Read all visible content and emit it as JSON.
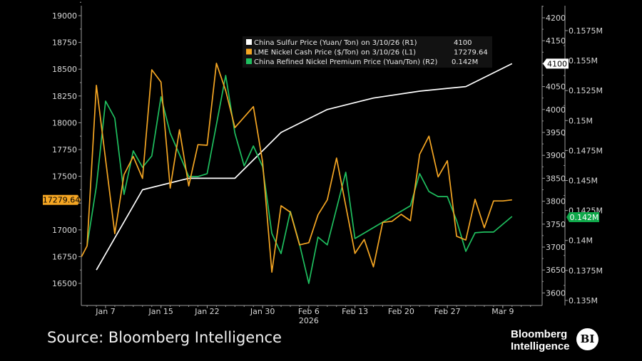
{
  "chart_data": {
    "type": "line",
    "x_unit": "trading days from Jan 7 2026",
    "x_ticks": [
      {
        "x": 0,
        "label": "Jan 7"
      },
      {
        "x": 6,
        "label": "Jan 15"
      },
      {
        "x": 11,
        "label": "Jan 22"
      },
      {
        "x": 17,
        "label": "Jan 30"
      },
      {
        "x": 22,
        "label": "Feb 6"
      },
      {
        "x": 27,
        "label": "Feb 13"
      },
      {
        "x": 32,
        "label": "Feb 20"
      },
      {
        "x": 37,
        "label": "Feb 27"
      },
      {
        "x": 43,
        "label": "Mar 9"
      }
    ],
    "x_year_label": "2026",
    "axes": {
      "left": {
        "id": "L1",
        "range": [
          16400,
          19100
        ],
        "ticks": [
          16500,
          16750,
          17000,
          17250,
          17500,
          17750,
          18000,
          18250,
          18500,
          18750,
          19000
        ],
        "tick_labels": [
          "16500",
          "16750",
          "17000",
          "",
          "17500",
          "17750",
          "18000",
          "18250",
          "18500",
          "18750",
          "19000"
        ]
      },
      "right1": {
        "id": "R1",
        "range": [
          3570,
          4230
        ],
        "ticks": [
          3600,
          3650,
          3700,
          3750,
          3800,
          3850,
          3900,
          3950,
          4000,
          4050,
          4100,
          4150,
          4200
        ],
        "tick_labels": [
          "3600",
          "3650",
          "3700",
          "3750",
          "3800",
          "3850",
          "3900",
          "3950",
          "4000",
          "4050",
          "",
          "4150",
          "4200"
        ]
      },
      "right2": {
        "id": "R2",
        "range": [
          134500,
          158500
        ],
        "ticks": [
          135000,
          137500,
          140000,
          142500,
          145000,
          147500,
          150000,
          152500,
          155000,
          157500
        ],
        "tick_labels": [
          "0.135M",
          "0.1375M",
          "0.14M",
          "0.1425M",
          "0.145M",
          "0.1475M",
          "0.15M",
          "0.1525M",
          "0.155M",
          "0.1575M"
        ]
      }
    },
    "series": [
      {
        "name": "China Sulfur Price (Yuan/ Ton) on 3/10/26 (R1)",
        "axis": "R1",
        "color": "#ffffff",
        "last_value": "4100",
        "points": [
          [
            -1,
            3650
          ],
          [
            4,
            3825
          ],
          [
            9,
            3850
          ],
          [
            14,
            3850
          ],
          [
            19,
            3950
          ],
          [
            24,
            4000
          ],
          [
            29,
            4025
          ],
          [
            34,
            4040
          ],
          [
            39,
            4050
          ],
          [
            44,
            4100
          ]
        ]
      },
      {
        "name": "LME Nickel Cash Price ($/Ton) on 3/10/26 (L1)",
        "axis": "L1",
        "color": "#f5a623",
        "last_value": "17279.64",
        "points": [
          [
            -2.6,
            16750
          ],
          [
            -2,
            16850
          ],
          [
            -1,
            18350
          ],
          [
            1,
            16965
          ],
          [
            2,
            17515
          ],
          [
            3,
            17685
          ],
          [
            4,
            17480
          ],
          [
            5,
            18495
          ],
          [
            6,
            18380
          ],
          [
            7,
            17390
          ],
          [
            8,
            17935
          ],
          [
            9,
            17410
          ],
          [
            10,
            17795
          ],
          [
            11,
            17790
          ],
          [
            12,
            18555
          ],
          [
            13,
            18300
          ],
          [
            14,
            17955
          ],
          [
            16,
            18150
          ],
          [
            17,
            17635
          ],
          [
            18,
            16605
          ],
          [
            19,
            17225
          ],
          [
            20,
            17165
          ],
          [
            21,
            16860
          ],
          [
            22,
            16880
          ],
          [
            23,
            17140
          ],
          [
            24,
            17280
          ],
          [
            25,
            17670
          ],
          [
            27,
            16780
          ],
          [
            28,
            16910
          ],
          [
            29,
            16655
          ],
          [
            30,
            17070
          ],
          [
            31,
            17080
          ],
          [
            32,
            17145
          ],
          [
            33,
            17085
          ],
          [
            34,
            17705
          ],
          [
            35,
            17875
          ],
          [
            36,
            17495
          ],
          [
            37,
            17645
          ],
          [
            38,
            16940
          ],
          [
            39,
            16905
          ],
          [
            40,
            17285
          ],
          [
            41,
            17020
          ],
          [
            42,
            17270
          ],
          [
            43,
            17270
          ],
          [
            44,
            17279.64
          ]
        ]
      },
      {
        "name": "China Refined Nickel Premium Price (Yuan/Ton) (R2)",
        "axis": "R2",
        "color": "#1fbf5f",
        "last_value": "0.142M",
        "points": [
          [
            -2,
            139570
          ],
          [
            -1,
            144500
          ],
          [
            0,
            151620
          ],
          [
            1,
            150200
          ],
          [
            2,
            143840
          ],
          [
            3,
            147470
          ],
          [
            4,
            146100
          ],
          [
            5,
            147050
          ],
          [
            6,
            151980
          ],
          [
            7,
            148950
          ],
          [
            8,
            147170
          ],
          [
            9,
            145330
          ],
          [
            10,
            145330
          ],
          [
            11,
            145570
          ],
          [
            13,
            153760
          ],
          [
            14,
            148950
          ],
          [
            15,
            146220
          ],
          [
            16,
            147880
          ],
          [
            17,
            146160
          ],
          [
            18,
            140580
          ],
          [
            19,
            138910
          ],
          [
            20,
            142420
          ],
          [
            21,
            139690
          ],
          [
            22,
            136420
          ],
          [
            23,
            140280
          ],
          [
            24,
            139630
          ],
          [
            26,
            145680
          ],
          [
            27,
            140160
          ],
          [
            33,
            142890
          ],
          [
            34,
            145570
          ],
          [
            35,
            144080
          ],
          [
            36,
            143660
          ],
          [
            37,
            143660
          ],
          [
            38,
            141650
          ],
          [
            39,
            139090
          ],
          [
            40,
            140640
          ],
          [
            41,
            140700
          ],
          [
            42,
            140700
          ],
          [
            44,
            142000
          ]
        ]
      }
    ],
    "legend_placement": "top-center",
    "grid": false
  },
  "footer": {
    "source": "Source: Bloomberg Intelligence",
    "logo_line1": "Bloomberg",
    "logo_line2": "Intelligence",
    "logo_badge": "BI"
  }
}
